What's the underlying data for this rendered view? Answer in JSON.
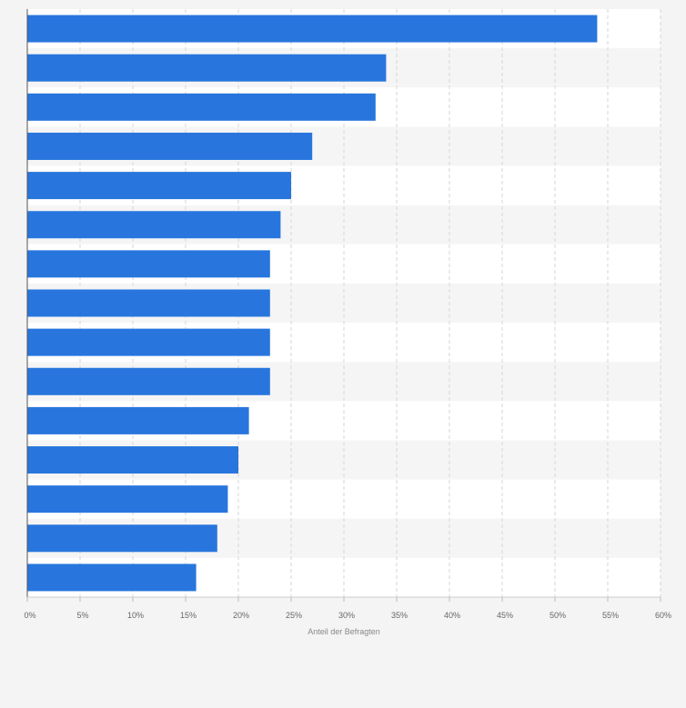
{
  "chart_data": {
    "type": "bar",
    "orientation": "horizontal",
    "title": "",
    "xlabel": "Anteil der Befragten",
    "ylabel": "",
    "xlim": [
      0,
      60
    ],
    "tick_values": [
      0,
      5,
      10,
      15,
      20,
      25,
      30,
      35,
      40,
      45,
      50,
      55,
      60
    ],
    "tick_labels": [
      "0%",
      "5%",
      "10%",
      "15%",
      "20%",
      "25%",
      "30%",
      "35%",
      "40%",
      "45%",
      "50%",
      "55%",
      "60%"
    ],
    "categories": [
      "",
      "",
      "",
      "",
      "",
      "",
      "",
      "",
      "",
      "",
      "",
      "",
      "",
      "",
      ""
    ],
    "values": [
      54,
      34,
      33,
      27,
      25,
      24,
      23,
      23,
      23,
      23,
      21,
      20,
      19,
      18,
      16
    ],
    "bar_color": "#2876dd",
    "band_colors": [
      "#ffffff",
      "#f5f5f5"
    ],
    "grid": true
  }
}
